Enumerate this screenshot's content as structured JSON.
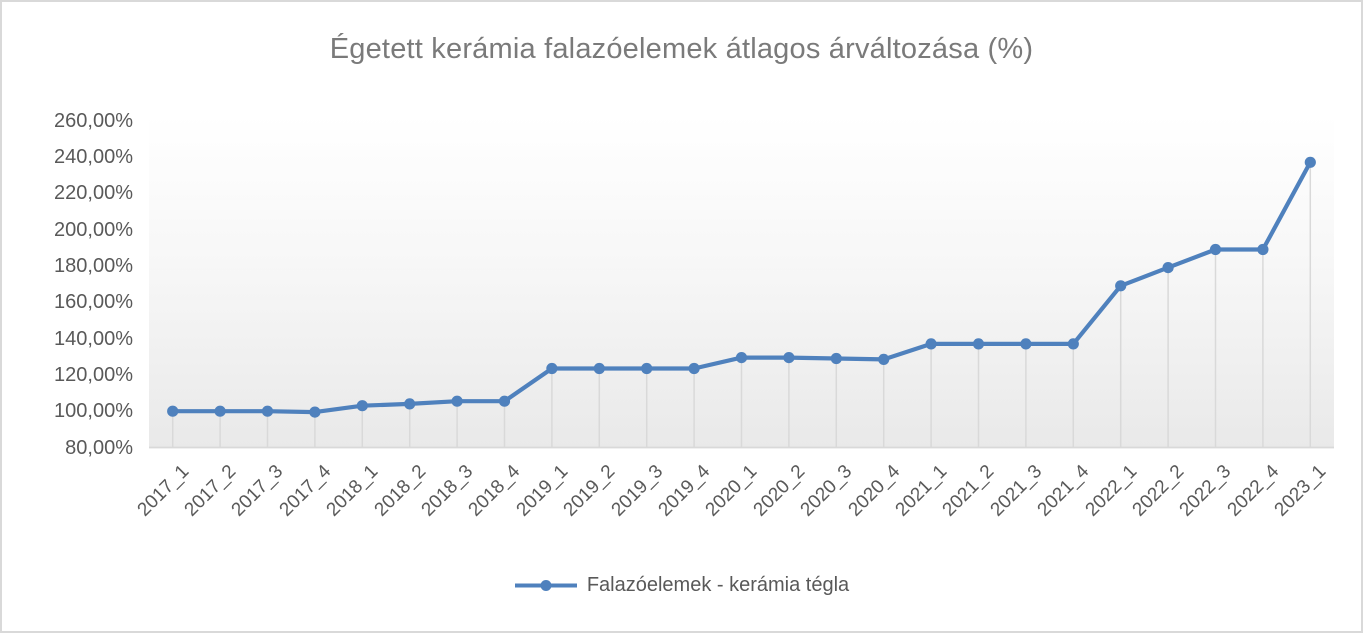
{
  "chart_data": {
    "type": "line",
    "title": "Égetett kerámia falazóelemek átlagos árváltozása (%)",
    "xlabel": "",
    "ylabel": "",
    "categories": [
      "2017_1",
      "2017_2",
      "2017_3",
      "2017_4",
      "2018_1",
      "2018_2",
      "2018_3",
      "2018_4",
      "2019_1",
      "2019_2",
      "2019_3",
      "2019_4",
      "2020_1",
      "2020_2",
      "2020_3",
      "2020_4",
      "2021_1",
      "2021_2",
      "2021_3",
      "2021_4",
      "2022_1",
      "2022_2",
      "2022_3",
      "2022_4",
      "2023_1"
    ],
    "series": [
      {
        "name": "Falazóelemek - kerámia tégla",
        "values": [
          100,
          100,
          100,
          99.5,
          103,
          104,
          105.5,
          105.5,
          123.5,
          123.5,
          123.5,
          123.5,
          129.5,
          129.5,
          129,
          128.5,
          137,
          137,
          137,
          137,
          169,
          179,
          189,
          189,
          237
        ]
      }
    ],
    "y_axis": {
      "min": 80,
      "max": 260,
      "step": 20,
      "unit": "%",
      "tick_labels": [
        "260,00%",
        "240,00%",
        "220,00%",
        "200,00%",
        "180,00%",
        "160,00%",
        "140,00%",
        "120,00%",
        "100,00%",
        "80,00%"
      ]
    },
    "grid": "vertical-droplines-only",
    "legend_position": "bottom",
    "colors": {
      "series": "#4f81bd",
      "grid": "#d9d9d9",
      "frame_border": "#d9d9d9",
      "title_text": "#7a7a7a",
      "tick_text": "#595959",
      "plot_bg_top": "#ffffff",
      "plot_bg_bottom": "#e9e9e9"
    }
  }
}
